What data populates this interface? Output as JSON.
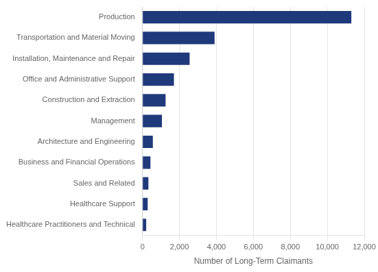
{
  "chart_data": {
    "type": "bar",
    "orientation": "horizontal",
    "categories": [
      "Healthcare Practitioners and Technical",
      "Healthcare Support",
      "Sales and Related",
      "Business and Financial Operations",
      "Architecture and Engineering",
      "Management",
      "Construction and Extraction",
      "Office and Administrative Support",
      "Installation, Maintenance and Repair",
      "Transportation and Material Moving",
      "Production"
    ],
    "values": [
      200,
      280,
      320,
      430,
      560,
      1050,
      1250,
      1700,
      2550,
      3900,
      11300
    ],
    "color": "#1F3A7A",
    "xlabel": "Number of Long-Term Claimants",
    "xlim": [
      0,
      12000
    ],
    "xticks": [
      0,
      {
        "value": 2000,
        "label": "2,000"
      },
      {
        "value": 4000,
        "label": "4,000"
      },
      {
        "value": 6000,
        "label": "6,000"
      },
      {
        "value": 8000,
        "label": "8,000"
      },
      {
        "value": 10000,
        "label": "10,000"
      },
      {
        "value": 12000,
        "label": "12,000"
      }
    ],
    "grid": true
  }
}
